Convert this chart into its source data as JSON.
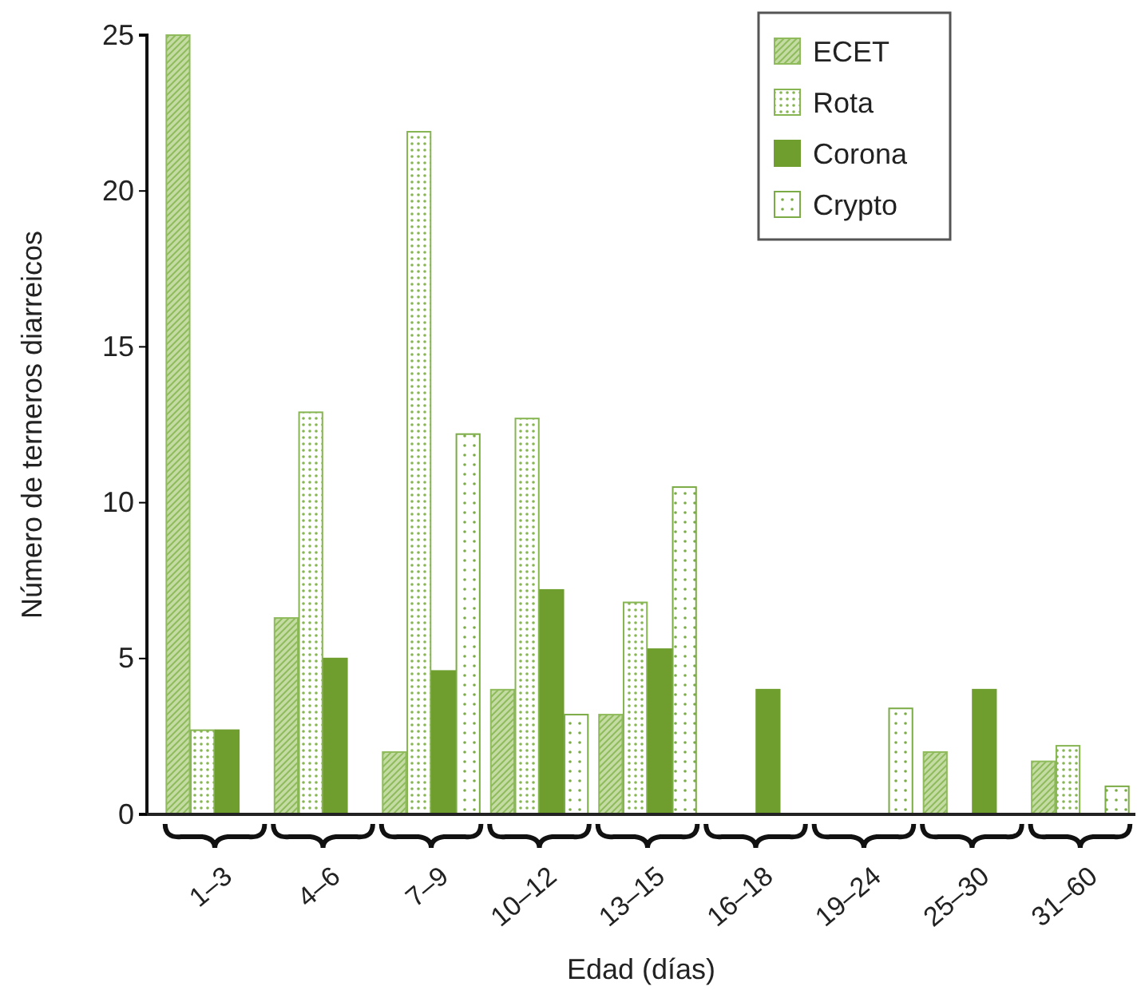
{
  "chart_data": {
    "type": "bar",
    "xlabel": "Edad (días)",
    "ylabel": "Número de terneros diarreicos",
    "categories": [
      "1–3",
      "4–6",
      "7–9",
      "10–12",
      "13–15",
      "16–18",
      "19–24",
      "25–30",
      "31–60"
    ],
    "series": [
      {
        "name": "ECET",
        "color": "#8fbb5c",
        "values": [
          25,
          6.3,
          2,
          4,
          3.2,
          null,
          null,
          2,
          1.7
        ]
      },
      {
        "name": "Rota",
        "color": "#86b552",
        "values": [
          2.7,
          12.9,
          21.9,
          12.7,
          6.8,
          null,
          null,
          null,
          2.2
        ]
      },
      {
        "name": "Corona",
        "color": "#6f9e2e",
        "values": [
          2.7,
          5,
          4.6,
          7.2,
          5.3,
          4,
          null,
          4,
          null
        ]
      },
      {
        "name": "Crypto",
        "color": "#7aab44",
        "values": [
          null,
          null,
          12.2,
          3.2,
          10.5,
          null,
          3.4,
          null,
          0.9
        ]
      }
    ],
    "ylim": [
      0,
      25
    ],
    "yticks": [
      0,
      5,
      10,
      15,
      20,
      25
    ],
    "grid": false,
    "legend": "top right"
  }
}
